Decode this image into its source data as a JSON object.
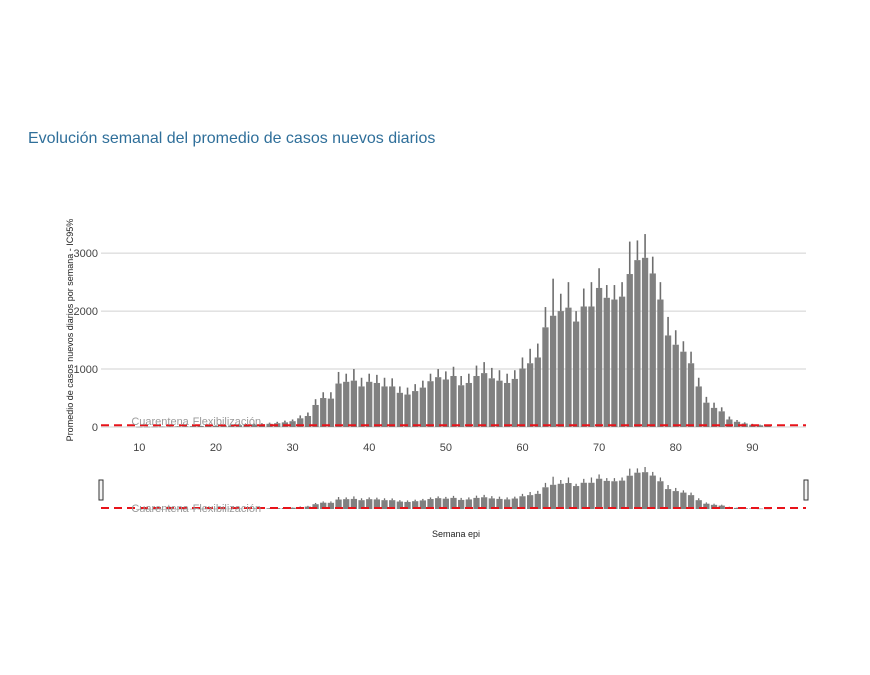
{
  "page": {
    "title": "Evolución semanal del promedio de casos nuevos diarios"
  },
  "colors": {
    "bar": "#808080",
    "error": "#6e6e6e",
    "ref_line": "#e8131a",
    "grid": "#d0d0d0",
    "title": "#2f6f9a"
  },
  "chart_data": {
    "type": "bar",
    "title": "Evolución semanal del promedio de casos nuevos diarios",
    "xlabel": "Semana epi",
    "ylabel": "Promedio de casos nuevos diarios por semana - IC95%",
    "xlim": [
      5,
      97
    ],
    "ylim": [
      0,
      3400
    ],
    "x_ticks": [
      10,
      20,
      30,
      40,
      50,
      60,
      70,
      80,
      90
    ],
    "y_ticks": [
      0,
      1000,
      2000,
      3000
    ],
    "grid": true,
    "reference_line": {
      "y": 30,
      "style": "dashed"
    },
    "annotations": [
      {
        "text": "Cuarentena",
        "x": 10
      },
      {
        "text": "Flexibilización",
        "x": 18
      }
    ],
    "x": [
      10,
      11,
      12,
      13,
      14,
      15,
      16,
      17,
      18,
      19,
      20,
      21,
      22,
      23,
      24,
      25,
      26,
      27,
      28,
      29,
      30,
      31,
      32,
      33,
      34,
      35,
      36,
      37,
      38,
      39,
      40,
      41,
      42,
      43,
      44,
      45,
      46,
      47,
      48,
      49,
      50,
      51,
      52,
      53,
      54,
      55,
      56,
      57,
      58,
      59,
      60,
      61,
      62,
      63,
      64,
      65,
      66,
      67,
      68,
      69,
      70,
      71,
      72,
      73,
      74,
      75,
      76,
      77,
      78,
      79,
      80,
      81,
      82,
      83,
      84,
      85,
      86,
      87,
      88,
      89,
      90,
      91,
      92
    ],
    "values": [
      3,
      4,
      5,
      6,
      8,
      10,
      12,
      15,
      18,
      20,
      22,
      25,
      28,
      32,
      38,
      42,
      48,
      55,
      65,
      80,
      100,
      150,
      190,
      380,
      500,
      490,
      750,
      780,
      800,
      700,
      780,
      760,
      700,
      700,
      590,
      560,
      620,
      680,
      790,
      860,
      820,
      880,
      720,
      760,
      880,
      930,
      840,
      800,
      760,
      830,
      1010,
      1100,
      1200,
      1720,
      1920,
      2000,
      2060,
      1820,
      2080,
      2080,
      2400,
      2230,
      2200,
      2250,
      2640,
      2880,
      2920,
      2650,
      2200,
      1580,
      1420,
      1300,
      1100,
      700,
      420,
      330,
      270,
      130,
      90,
      60,
      40,
      30,
      25
    ],
    "upper": [
      5,
      7,
      8,
      10,
      12,
      14,
      17,
      20,
      24,
      27,
      30,
      33,
      38,
      45,
      52,
      57,
      65,
      75,
      90,
      110,
      130,
      200,
      250,
      480,
      600,
      600,
      950,
      920,
      1000,
      850,
      920,
      900,
      850,
      840,
      700,
      680,
      740,
      800,
      920,
      1000,
      960,
      1040,
      880,
      920,
      1060,
      1120,
      1020,
      980,
      920,
      980,
      1200,
      1350,
      1440,
      2070,
      2560,
      2300,
      2500,
      2000,
      2390,
      2500,
      2740,
      2450,
      2450,
      2500,
      3200,
      3220,
      3330,
      2940,
      2500,
      1900,
      1670,
      1480,
      1300,
      850,
      520,
      420,
      340,
      180,
      120,
      80,
      55,
      40,
      35
    ],
    "brush": {
      "range": [
        5,
        97
      ]
    }
  }
}
